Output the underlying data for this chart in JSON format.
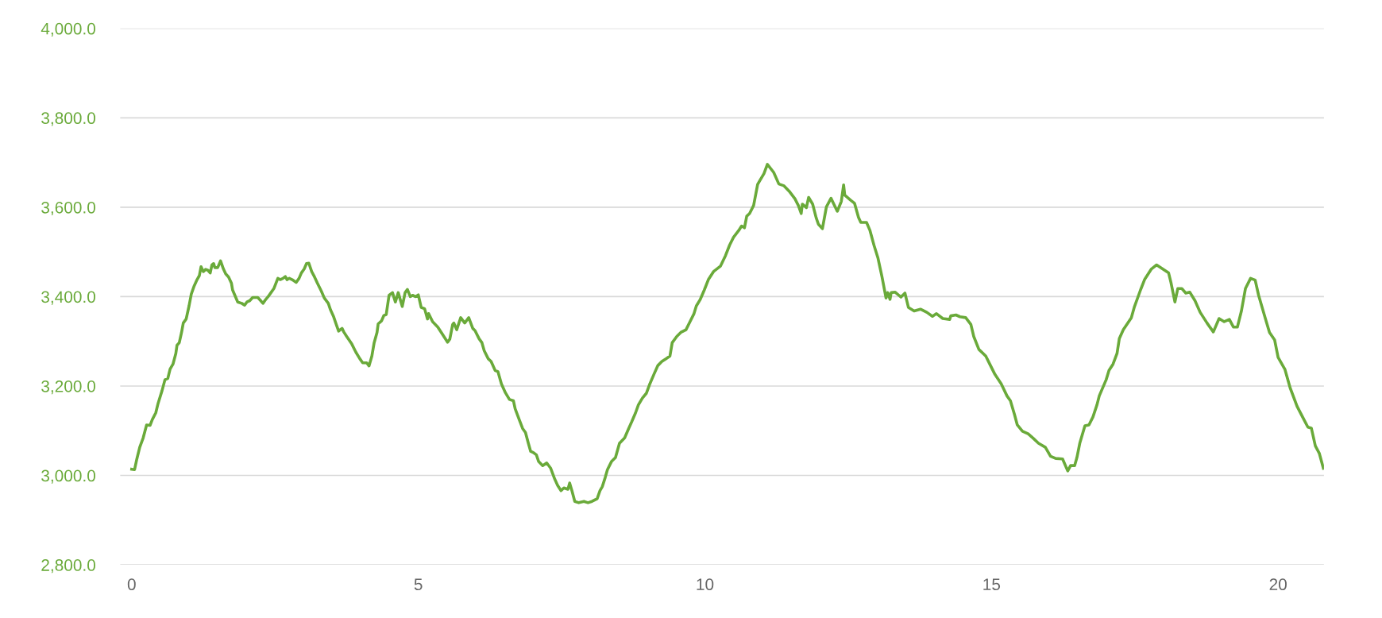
{
  "chart_data": {
    "type": "line",
    "x": [
      0.0,
      0.05,
      0.09,
      0.14,
      0.2,
      0.26,
      0.32,
      0.36,
      0.42,
      0.46,
      0.53,
      0.58,
      0.63,
      0.67,
      0.72,
      0.77,
      0.79,
      0.83,
      0.87,
      0.9,
      0.95,
      1.0,
      1.04,
      1.09,
      1.14,
      1.18,
      1.21,
      1.25,
      1.29,
      1.33,
      1.37,
      1.4,
      1.43,
      1.45,
      1.5,
      1.55,
      1.6,
      1.64,
      1.69,
      1.74,
      1.76,
      1.81,
      1.85,
      1.92,
      1.97,
      2.01,
      2.06,
      2.11,
      2.2,
      2.25,
      2.29,
      2.34,
      2.38,
      2.43,
      2.48,
      2.55,
      2.59,
      2.64,
      2.68,
      2.71,
      2.75,
      2.8,
      2.87,
      2.92,
      2.96,
      3.01,
      3.05,
      3.09,
      3.14,
      3.19,
      3.24,
      3.31,
      3.36,
      3.43,
      3.47,
      3.52,
      3.56,
      3.61,
      3.67,
      3.7,
      3.75,
      3.84,
      3.91,
      3.98,
      4.03,
      4.1,
      4.14,
      4.19,
      4.23,
      4.28,
      4.3,
      4.36,
      4.4,
      4.44,
      4.49,
      4.55,
      4.6,
      4.65,
      4.72,
      4.77,
      4.81,
      4.86,
      4.9,
      4.95,
      5.0,
      5.05,
      5.11,
      5.16,
      5.18,
      5.25,
      5.34,
      5.41,
      5.51,
      5.55,
      5.6,
      5.62,
      5.67,
      5.74,
      5.81,
      5.88,
      5.95,
      5.99,
      6.06,
      6.11,
      6.15,
      6.22,
      6.27,
      6.34,
      6.39,
      6.45,
      6.52,
      6.59,
      6.66,
      6.69,
      6.76,
      6.82,
      6.87,
      6.92,
      6.96,
      7.01,
      7.06,
      7.1,
      7.17,
      7.24,
      7.31,
      7.38,
      7.43,
      7.49,
      7.54,
      7.61,
      7.64,
      7.68,
      7.73,
      7.8,
      7.89,
      7.96,
      8.03,
      8.12,
      8.17,
      8.21,
      8.26,
      8.3,
      8.37,
      8.44,
      8.51,
      8.6,
      8.67,
      8.72,
      8.79,
      8.84,
      8.91,
      8.98,
      9.04,
      9.11,
      9.18,
      9.25,
      9.32,
      9.39,
      9.43,
      9.51,
      9.58,
      9.67,
      9.74,
      9.81,
      9.85,
      9.92,
      9.99,
      10.06,
      10.15,
      10.27,
      10.36,
      10.43,
      10.5,
      10.59,
      10.64,
      10.69,
      10.73,
      10.78,
      10.85,
      10.92,
      10.96,
      11.03,
      11.09,
      11.2,
      11.29,
      11.38,
      11.47,
      11.57,
      11.63,
      11.68,
      11.7,
      11.77,
      11.81,
      11.88,
      11.94,
      11.98,
      12.05,
      12.12,
      12.2,
      12.31,
      12.38,
      12.42,
      12.44,
      12.54,
      12.61,
      12.68,
      12.72,
      12.82,
      12.88,
      12.95,
      13.02,
      13.09,
      13.16,
      13.19,
      13.23,
      13.25,
      13.32,
      13.42,
      13.49,
      13.55,
      13.65,
      13.76,
      13.87,
      13.97,
      14.04,
      14.15,
      14.27,
      14.29,
      14.38,
      14.45,
      14.55,
      14.64,
      14.69,
      14.78,
      14.9,
      14.97,
      15.06,
      15.17,
      15.27,
      15.33,
      15.4,
      15.45,
      15.54,
      15.64,
      15.73,
      15.82,
      15.94,
      16.03,
      16.12,
      16.24,
      16.33,
      16.38,
      16.45,
      16.49,
      16.54,
      16.63,
      16.7,
      16.77,
      16.84,
      16.88,
      17.0,
      17.05,
      17.12,
      17.19,
      17.23,
      17.3,
      17.44,
      17.49,
      17.6,
      17.67,
      17.79,
      17.88,
      18.09,
      18.13,
      18.2,
      18.25,
      18.32,
      18.39,
      18.46,
      18.55,
      18.64,
      18.76,
      18.87,
      18.97,
      19.06,
      19.15,
      19.22,
      19.29,
      19.36,
      19.43,
      19.52,
      19.6,
      19.66,
      19.78,
      19.85,
      19.94,
      20.0,
      20.12,
      20.21,
      20.33,
      20.45,
      20.52,
      20.58,
      20.65,
      20.72,
      20.79
    ],
    "series": [
      {
        "color": "#6aaa3a",
        "values": [
          3014,
          3013,
          3037,
          3063,
          3084,
          3113,
          3112,
          3125,
          3140,
          3161,
          3190,
          3214,
          3217,
          3238,
          3249,
          3273,
          3291,
          3297,
          3320,
          3341,
          3350,
          3379,
          3406,
          3424,
          3438,
          3447,
          3467,
          3456,
          3461,
          3459,
          3453,
          3471,
          3474,
          3465,
          3465,
          3480,
          3462,
          3451,
          3444,
          3430,
          3415,
          3400,
          3388,
          3385,
          3381,
          3388,
          3391,
          3398,
          3398,
          3391,
          3385,
          3394,
          3400,
          3409,
          3418,
          3441,
          3438,
          3441,
          3445,
          3438,
          3441,
          3438,
          3432,
          3441,
          3453,
          3462,
          3474,
          3475,
          3456,
          3444,
          3430,
          3412,
          3397,
          3385,
          3370,
          3356,
          3341,
          3323,
          3329,
          3321,
          3311,
          3294,
          3276,
          3261,
          3252,
          3252,
          3245,
          3267,
          3297,
          3320,
          3339,
          3346,
          3358,
          3360,
          3403,
          3409,
          3388,
          3409,
          3378,
          3409,
          3416,
          3400,
          3403,
          3400,
          3404,
          3376,
          3373,
          3350,
          3362,
          3344,
          3332,
          3318,
          3298,
          3305,
          3338,
          3341,
          3326,
          3353,
          3341,
          3353,
          3329,
          3324,
          3306,
          3297,
          3279,
          3261,
          3255,
          3235,
          3232,
          3205,
          3185,
          3170,
          3167,
          3149,
          3125,
          3105,
          3096,
          3072,
          3054,
          3051,
          3046,
          3031,
          3022,
          3028,
          3016,
          2992,
          2978,
          2966,
          2972,
          2969,
          2983,
          2966,
          2942,
          2939,
          2942,
          2939,
          2942,
          2948,
          2966,
          2975,
          2995,
          3013,
          3031,
          3040,
          3072,
          3084,
          3105,
          3119,
          3140,
          3158,
          3173,
          3184,
          3205,
          3226,
          3246,
          3255,
          3261,
          3267,
          3297,
          3311,
          3320,
          3326,
          3344,
          3362,
          3379,
          3394,
          3415,
          3438,
          3456,
          3468,
          3492,
          3515,
          3533,
          3548,
          3558,
          3554,
          3580,
          3586,
          3604,
          3651,
          3660,
          3675,
          3696,
          3678,
          3652,
          3648,
          3636,
          3619,
          3604,
          3586,
          3607,
          3599,
          3622,
          3607,
          3577,
          3562,
          3552,
          3601,
          3620,
          3591,
          3613,
          3650,
          3627,
          3616,
          3609,
          3577,
          3566,
          3566,
          3548,
          3515,
          3486,
          3444,
          3397,
          3409,
          3394,
          3409,
          3410,
          3399,
          3408,
          3376,
          3368,
          3372,
          3365,
          3356,
          3362,
          3351,
          3349,
          3357,
          3359,
          3355,
          3353,
          3338,
          3311,
          3282,
          3267,
          3249,
          3226,
          3205,
          3178,
          3167,
          3137,
          3113,
          3099,
          3093,
          3083,
          3072,
          3063,
          3043,
          3038,
          3037,
          3010,
          3022,
          3022,
          3040,
          3072,
          3111,
          3113,
          3131,
          3158,
          3178,
          3214,
          3235,
          3249,
          3273,
          3306,
          3326,
          3353,
          3376,
          3415,
          3438,
          3462,
          3471,
          3453,
          3432,
          3388,
          3418,
          3418,
          3408,
          3410,
          3391,
          3365,
          3341,
          3321,
          3351,
          3344,
          3349,
          3332,
          3332,
          3368,
          3418,
          3441,
          3437,
          3403,
          3350,
          3320,
          3303,
          3264,
          3237,
          3196,
          3155,
          3125,
          3108,
          3106,
          3066,
          3049,
          3016
        ]
      }
    ],
    "xlim": [
      -0.2,
      20.8
    ],
    "xticks": [
      0,
      5,
      10,
      15,
      20
    ],
    "ylim": [
      2800,
      4000
    ],
    "yticks": [
      {
        "value": 2800,
        "label": "2,800.0"
      },
      {
        "value": 3000,
        "label": "3,000.0"
      },
      {
        "value": 3200,
        "label": "3,200.0"
      },
      {
        "value": 3400,
        "label": "3,400.0"
      },
      {
        "value": 3600,
        "label": "3,600.0"
      },
      {
        "value": 3800,
        "label": "3,800.0"
      },
      {
        "value": 4000,
        "label": "4,000.0"
      }
    ],
    "grid": "y",
    "marker": "none",
    "line_style": "solid"
  }
}
